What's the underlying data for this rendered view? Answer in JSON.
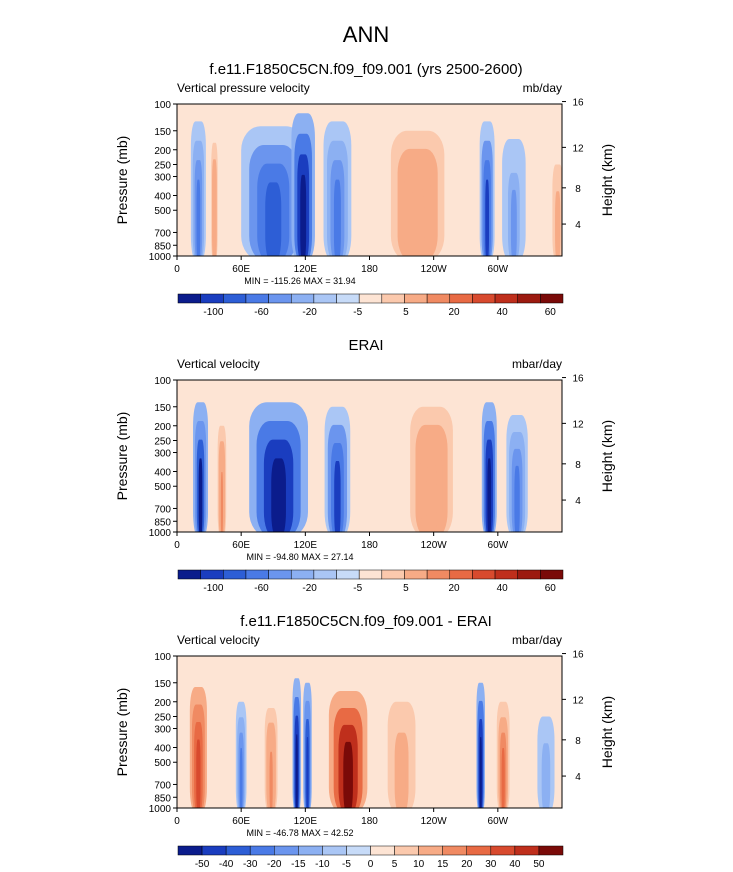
{
  "figure_title": "ANN",
  "chart_data": [
    {
      "type": "heatmap",
      "title": "f.e11.F1850C5CN.f09_f09.001 (yrs 2500-2600)",
      "left_label": "Vertical pressure velocity",
      "units": "mb/day",
      "ylabel": "Pressure (mb)",
      "ylabel_right": "Height (km)",
      "stats": "MIN = -115.26  MAX =  31.94",
      "x_ticks": [
        "0",
        "60E",
        "120E",
        "180",
        "120W",
        "60W"
      ],
      "x_tick_values": [
        0,
        60,
        120,
        180,
        240,
        300
      ],
      "xlim": [
        0,
        360
      ],
      "y_ticks": [
        "100",
        "150",
        "200",
        "250",
        "300",
        "400",
        "500",
        "700",
        "850",
        "1000"
      ],
      "y_tick_values": [
        100,
        150,
        200,
        250,
        300,
        400,
        500,
        700,
        850,
        1000
      ],
      "ylim": [
        1000,
        100
      ],
      "height_ticks": [
        "16",
        "12",
        "8",
        "4"
      ],
      "height_tick_values": [
        16,
        12,
        8,
        4
      ],
      "colorbar_labels": [
        "-100",
        "-60",
        "-20",
        "-5",
        "5",
        "20",
        "40",
        "60"
      ],
      "colorbar_colors": [
        "#0b1c8c",
        "#1a3dbf",
        "#2d5ed6",
        "#4a7ae6",
        "#6b95ee",
        "#8cb0f2",
        "#aac6f5",
        "#c7dbf8",
        "#fde4d4",
        "#fbc9ad",
        "#f7ab86",
        "#f08a62",
        "#e86a44",
        "#d84a2e",
        "#bf2f1c",
        "#9c1a10",
        "#7a0a08"
      ],
      "features": [
        {
          "lon": 20,
          "width": 14,
          "p_top": 130,
          "value": -40
        },
        {
          "lon": 35,
          "width": 6,
          "p_top": 180,
          "value": 10
        },
        {
          "lon": 90,
          "width": 60,
          "p_top": 140,
          "value": -50
        },
        {
          "lon": 118,
          "width": 22,
          "p_top": 115,
          "value": -70
        },
        {
          "lon": 150,
          "width": 26,
          "p_top": 130,
          "value": -35
        },
        {
          "lon": 225,
          "width": 50,
          "p_top": 150,
          "value": 14
        },
        {
          "lon": 290,
          "width": 14,
          "p_top": 130,
          "value": -55
        },
        {
          "lon": 315,
          "width": 22,
          "p_top": 170,
          "value": -25
        },
        {
          "lon": 356,
          "width": 10,
          "p_top": 250,
          "value": 8
        }
      ]
    },
    {
      "type": "heatmap",
      "title": "ERAI",
      "left_label": "Vertical velocity",
      "units": "mbar/day",
      "ylabel": "Pressure (mb)",
      "ylabel_right": "Height (km)",
      "stats": "MIN = -94.80  MAX =  27.14",
      "x_ticks": [
        "0",
        "60E",
        "120E",
        "180",
        "120W",
        "60W"
      ],
      "x_tick_values": [
        0,
        60,
        120,
        180,
        240,
        300
      ],
      "xlim": [
        0,
        360
      ],
      "y_ticks": [
        "100",
        "150",
        "200",
        "250",
        "300",
        "400",
        "500",
        "700",
        "850",
        "1000"
      ],
      "y_tick_values": [
        100,
        150,
        200,
        250,
        300,
        400,
        500,
        700,
        850,
        1000
      ],
      "ylim": [
        1000,
        100
      ],
      "height_ticks": [
        "16",
        "12",
        "8",
        "4"
      ],
      "height_tick_values": [
        16,
        12,
        8,
        4
      ],
      "colorbar_labels": [
        "-100",
        "-60",
        "-20",
        "-5",
        "5",
        "20",
        "40",
        "60"
      ],
      "colorbar_colors": [
        "#0b1c8c",
        "#1a3dbf",
        "#2d5ed6",
        "#4a7ae6",
        "#6b95ee",
        "#8cb0f2",
        "#aac6f5",
        "#c7dbf8",
        "#fde4d4",
        "#fbc9ad",
        "#f7ab86",
        "#f08a62",
        "#e86a44",
        "#d84a2e",
        "#bf2f1c",
        "#9c1a10",
        "#7a0a08"
      ],
      "features": [
        {
          "lon": 22,
          "width": 14,
          "p_top": 140,
          "value": -35
        },
        {
          "lon": 42,
          "width": 8,
          "p_top": 200,
          "value": 9
        },
        {
          "lon": 95,
          "width": 55,
          "p_top": 140,
          "value": -40
        },
        {
          "lon": 150,
          "width": 24,
          "p_top": 150,
          "value": -30
        },
        {
          "lon": 238,
          "width": 40,
          "p_top": 150,
          "value": 8
        },
        {
          "lon": 292,
          "width": 14,
          "p_top": 140,
          "value": -40
        },
        {
          "lon": 318,
          "width": 20,
          "p_top": 170,
          "value": -20
        }
      ]
    },
    {
      "type": "heatmap",
      "title": "f.e11.F1850C5CN.f09_f09.001 - ERAI",
      "left_label": "Vertical velocity",
      "units": "mbar/day",
      "ylabel": "Pressure (mb)",
      "ylabel_right": "Height (km)",
      "stats": "MIN = -46.78  MAX =  42.52",
      "x_ticks": [
        "0",
        "60E",
        "120E",
        "180",
        "120W",
        "60W"
      ],
      "x_tick_values": [
        0,
        60,
        120,
        180,
        240,
        300
      ],
      "xlim": [
        0,
        360
      ],
      "y_ticks": [
        "100",
        "150",
        "200",
        "250",
        "300",
        "400",
        "500",
        "700",
        "850",
        "1000"
      ],
      "y_tick_values": [
        100,
        150,
        200,
        250,
        300,
        400,
        500,
        700,
        850,
        1000
      ],
      "ylim": [
        1000,
        100
      ],
      "height_ticks": [
        "16",
        "12",
        "8",
        "4"
      ],
      "height_tick_values": [
        16,
        12,
        8,
        4
      ],
      "colorbar_labels": [
        "-50",
        "-40",
        "-30",
        "-20",
        "-15",
        "-10",
        "-5",
        "0",
        "5",
        "10",
        "15",
        "20",
        "30",
        "40",
        "50"
      ],
      "colorbar_colors": [
        "#0b1c8c",
        "#1a3dbf",
        "#2d5ed6",
        "#4a7ae6",
        "#6b95ee",
        "#8cb0f2",
        "#aac6f5",
        "#c7dbf8",
        "#fde4d4",
        "#fbc9ad",
        "#f7ab86",
        "#f08a62",
        "#e86a44",
        "#d84a2e",
        "#bf2f1c",
        "#7a0a08"
      ],
      "features": [
        {
          "lon": 20,
          "width": 16,
          "p_top": 160,
          "value": 20
        },
        {
          "lon": 60,
          "width": 10,
          "p_top": 200,
          "value": -15
        },
        {
          "lon": 88,
          "width": 12,
          "p_top": 220,
          "value": 10
        },
        {
          "lon": 112,
          "width": 8,
          "p_top": 140,
          "value": -30
        },
        {
          "lon": 122,
          "width": 8,
          "p_top": 150,
          "value": -25
        },
        {
          "lon": 160,
          "width": 36,
          "p_top": 170,
          "value": 30
        },
        {
          "lon": 210,
          "width": 26,
          "p_top": 200,
          "value": 8
        },
        {
          "lon": 284,
          "width": 8,
          "p_top": 150,
          "value": -30
        },
        {
          "lon": 305,
          "width": 12,
          "p_top": 200,
          "value": 15
        },
        {
          "lon": 345,
          "width": 16,
          "p_top": 250,
          "value": -6
        }
      ]
    }
  ]
}
